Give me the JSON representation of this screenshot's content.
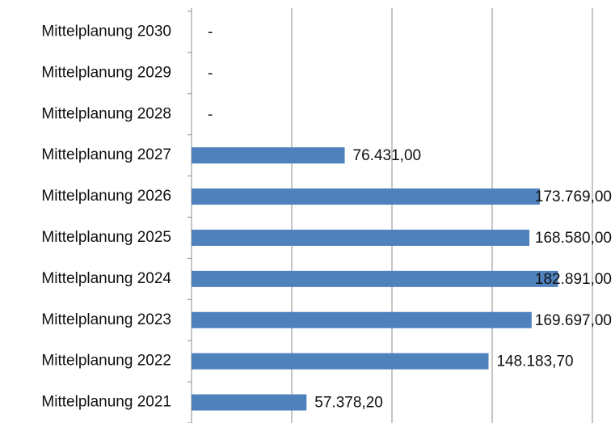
{
  "chart_data": {
    "type": "bar",
    "orientation": "horizontal",
    "categories": [
      "Mittelplanung 2030",
      "Mittelplanung 2029",
      "Mittelplanung 2028",
      "Mittelplanung 2027",
      "Mittelplanung 2026",
      "Mittelplanung 2025",
      "Mittelplanung 2024",
      "Mittelplanung 2023",
      "Mittelplanung 2022",
      "Mittelplanung 2021"
    ],
    "values": [
      null,
      null,
      null,
      76431,
      173769,
      168580,
      182891,
      169697,
      148183.7,
      57378.2
    ],
    "value_labels": [
      "-",
      "-",
      "-",
      "76.431,00",
      "173.769,00",
      "168.580,00",
      "182.891,00",
      "169.697,00",
      "148.183,70",
      "57.378,20"
    ],
    "color": "#4f81bd",
    "xlim": [
      0,
      200000
    ],
    "xticks": [
      0,
      50000,
      100000,
      150000,
      200000
    ],
    "grid": true
  }
}
